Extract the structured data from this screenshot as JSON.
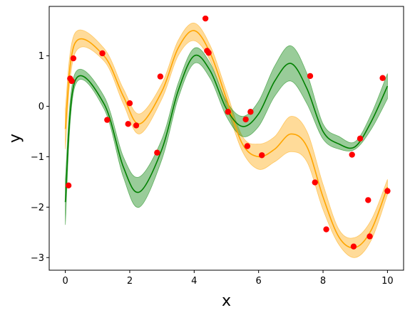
{
  "chart_data": {
    "type": "line",
    "xlabel": "x",
    "ylabel": "y",
    "xlim": [
      -0.5,
      10.5
    ],
    "ylim": [
      -3.25,
      1.98
    ],
    "xticks": [
      0,
      2,
      4,
      6,
      8,
      10
    ],
    "yticks": [
      -3,
      -2,
      -1,
      0,
      1
    ],
    "grid": false,
    "legend": "none",
    "colors": {
      "orange_line": "#ffa500",
      "orange_band": "#ffa500",
      "green_line": "#008000",
      "green_band": "#008000",
      "points": "#ff0000"
    },
    "series": [
      {
        "style": "line-with-band",
        "color": "#ffa500",
        "x": [
          0,
          0.3,
          1.2,
          1.8,
          2.3,
          3.0,
          3.5,
          4.0,
          4.5,
          5.0,
          5.5,
          6.0,
          6.5,
          7.0,
          7.5,
          8.0,
          8.5,
          9.0,
          9.5,
          10.0
        ],
        "y": [
          -0.45,
          1.25,
          1.0,
          0.2,
          -0.35,
          0.3,
          1.15,
          1.5,
          1.05,
          0.15,
          -0.75,
          -1.0,
          -0.85,
          -0.55,
          -0.8,
          -1.8,
          -2.6,
          -2.8,
          -2.45,
          -1.6
        ],
        "lower": [
          -0.85,
          1.05,
          0.9,
          0.05,
          -0.55,
          0.15,
          1.0,
          1.3,
          0.9,
          0.0,
          -0.9,
          -1.25,
          -1.1,
          -0.9,
          -1.1,
          -2.05,
          -2.75,
          -3.0,
          -2.65,
          -1.75
        ],
        "upper": [
          -0.05,
          1.45,
          1.15,
          0.35,
          -0.15,
          0.45,
          1.3,
          1.65,
          1.2,
          0.3,
          -0.6,
          -0.75,
          -0.6,
          -0.2,
          -0.5,
          -1.55,
          -2.45,
          -2.6,
          -2.25,
          -1.45
        ]
      },
      {
        "style": "line-with-band",
        "color": "#008000",
        "x": [
          0,
          0.3,
          1.2,
          1.8,
          2.3,
          3.0,
          3.5,
          4.0,
          4.5,
          5.0,
          5.5,
          6.0,
          6.5,
          7.0,
          7.5,
          8.0,
          8.5,
          9.0,
          9.5,
          10.0
        ],
        "y": [
          -1.9,
          0.5,
          0.05,
          -1.2,
          -1.7,
          -0.85,
          0.3,
          1.0,
          0.7,
          -0.05,
          -0.4,
          -0.15,
          0.5,
          0.85,
          0.35,
          -0.5,
          -0.75,
          -0.8,
          -0.3,
          0.4
        ],
        "lower": [
          -2.35,
          0.4,
          -0.05,
          -1.4,
          -2.0,
          -1.05,
          0.15,
          0.85,
          0.55,
          -0.2,
          -0.6,
          -0.4,
          0.2,
          0.5,
          0.05,
          -0.65,
          -0.85,
          -0.85,
          -0.45,
          0.15
        ],
        "upper": [
          -1.45,
          0.65,
          0.2,
          -1.0,
          -1.4,
          -0.65,
          0.45,
          1.15,
          0.85,
          0.1,
          -0.2,
          0.1,
          0.8,
          1.2,
          0.65,
          -0.35,
          -0.6,
          -0.7,
          -0.15,
          0.65
        ]
      },
      {
        "style": "scatter",
        "color": "#ff0000",
        "x": [
          0.1,
          0.15,
          0.2,
          0.25,
          1.15,
          1.3,
          1.95,
          2.0,
          2.2,
          2.85,
          2.95,
          4.35,
          4.4,
          4.45,
          5.05,
          5.6,
          5.65,
          5.75,
          6.1,
          7.6,
          7.75,
          8.1,
          8.9,
          8.95,
          9.15,
          9.4,
          9.45,
          9.85,
          10.0
        ],
        "y": [
          -1.57,
          0.55,
          0.5,
          0.95,
          1.05,
          -0.27,
          -0.35,
          0.06,
          -0.38,
          -0.92,
          0.59,
          1.74,
          1.1,
          1.06,
          -0.11,
          -0.26,
          -0.79,
          -0.11,
          -0.97,
          0.6,
          -1.51,
          -2.44,
          -0.96,
          -2.78,
          -0.64,
          -1.86,
          -2.58,
          0.56,
          -1.68
        ]
      }
    ]
  }
}
